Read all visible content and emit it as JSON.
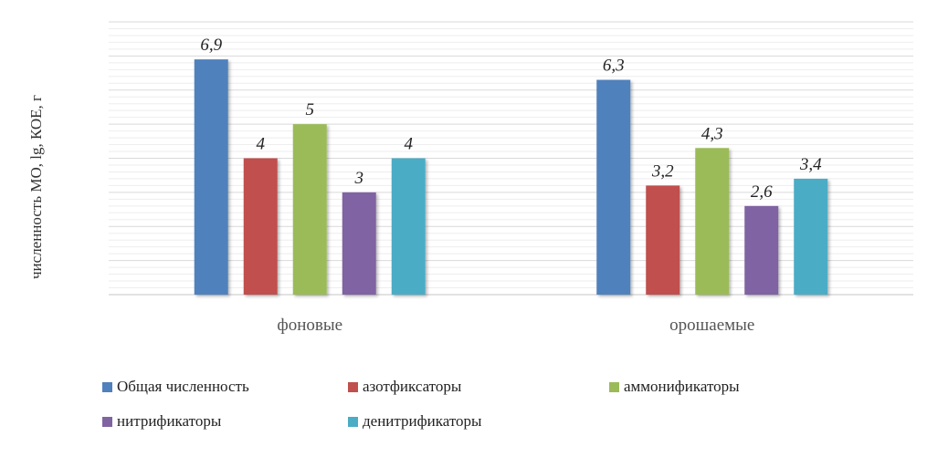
{
  "chart_data": {
    "type": "bar",
    "title": "",
    "xlabel": "",
    "ylabel": "численность МО, lg, КОЕ, г",
    "categories": [
      "фоновые",
      "орошаемые"
    ],
    "series": [
      {
        "name": "Общая численность",
        "values": [
          6.9,
          6.3
        ],
        "labels": [
          "6,9",
          "6,3"
        ],
        "color": "#4f81bd"
      },
      {
        "name": "азотфиксаторы",
        "values": [
          4,
          3.2
        ],
        "labels": [
          "4",
          "3,2"
        ],
        "color": "#c0504d"
      },
      {
        "name": "аммонификаторы",
        "values": [
          5,
          4.3
        ],
        "labels": [
          "5",
          "4,3"
        ],
        "color": "#9bbb59"
      },
      {
        "name": "нитрификаторы",
        "values": [
          3,
          2.6
        ],
        "labels": [
          "3",
          "2,6"
        ],
        "color": "#8064a2"
      },
      {
        "name": "денитрификаторы",
        "values": [
          4,
          3.4
        ],
        "labels": [
          "4",
          "3,4"
        ],
        "color": "#4bacc6"
      }
    ],
    "ylim": [
      0,
      8
    ],
    "grid": true,
    "legend": "bottom"
  }
}
